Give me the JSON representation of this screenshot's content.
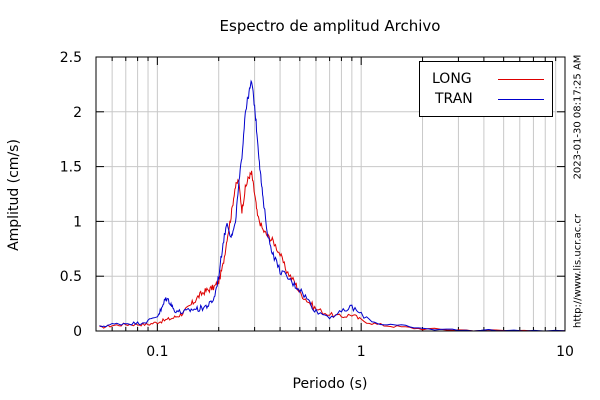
{
  "chart_data": {
    "type": "line",
    "title": "Espectro de amplitud Archivo",
    "xlabel": "Periodo (s)",
    "ylabel": "Amplitud (cm/s)",
    "xscale": "log",
    "xlim": [
      0.05,
      10
    ],
    "ylim": [
      0,
      2.5
    ],
    "x_tick_labels": [
      "0.1",
      "1",
      "10"
    ],
    "y_tick_labels": [
      "0",
      "0.5",
      "1",
      "1.5",
      "2",
      "2.5"
    ],
    "grid": true,
    "legend_position": "top-right",
    "series": [
      {
        "name": "LONG",
        "color": "#dd0000",
        "points": [
          [
            0.052,
            0.03
          ],
          [
            0.06,
            0.05
          ],
          [
            0.07,
            0.06
          ],
          [
            0.08,
            0.06
          ],
          [
            0.09,
            0.06
          ],
          [
            0.1,
            0.08
          ],
          [
            0.11,
            0.1
          ],
          [
            0.12,
            0.12
          ],
          [
            0.13,
            0.15
          ],
          [
            0.14,
            0.2
          ],
          [
            0.15,
            0.26
          ],
          [
            0.16,
            0.32
          ],
          [
            0.17,
            0.36
          ],
          [
            0.18,
            0.38
          ],
          [
            0.19,
            0.4
          ],
          [
            0.2,
            0.45
          ],
          [
            0.21,
            0.6
          ],
          [
            0.22,
            0.85
          ],
          [
            0.23,
            1.05
          ],
          [
            0.24,
            1.3
          ],
          [
            0.25,
            1.38
          ],
          [
            0.26,
            1.1
          ],
          [
            0.27,
            1.3
          ],
          [
            0.28,
            1.4
          ],
          [
            0.29,
            1.44
          ],
          [
            0.3,
            1.25
          ],
          [
            0.31,
            1.05
          ],
          [
            0.33,
            0.92
          ],
          [
            0.35,
            0.86
          ],
          [
            0.37,
            0.82
          ],
          [
            0.4,
            0.7
          ],
          [
            0.43,
            0.55
          ],
          [
            0.47,
            0.45
          ],
          [
            0.5,
            0.35
          ],
          [
            0.55,
            0.27
          ],
          [
            0.6,
            0.2
          ],
          [
            0.7,
            0.15
          ],
          [
            0.8,
            0.13
          ],
          [
            0.9,
            0.15
          ],
          [
            1.0,
            0.1
          ],
          [
            1.2,
            0.06
          ],
          [
            1.5,
            0.04
          ],
          [
            2.0,
            0.02
          ],
          [
            3.0,
            0.01
          ],
          [
            5.0,
            0.005
          ],
          [
            10.0,
            0.002
          ]
        ]
      },
      {
        "name": "TRAN",
        "color": "#0000cc",
        "points": [
          [
            0.052,
            0.04
          ],
          [
            0.06,
            0.06
          ],
          [
            0.07,
            0.07
          ],
          [
            0.08,
            0.07
          ],
          [
            0.09,
            0.09
          ],
          [
            0.1,
            0.14
          ],
          [
            0.105,
            0.2
          ],
          [
            0.11,
            0.3
          ],
          [
            0.115,
            0.27
          ],
          [
            0.12,
            0.2
          ],
          [
            0.13,
            0.17
          ],
          [
            0.14,
            0.18
          ],
          [
            0.15,
            0.2
          ],
          [
            0.16,
            0.2
          ],
          [
            0.17,
            0.22
          ],
          [
            0.18,
            0.24
          ],
          [
            0.19,
            0.3
          ],
          [
            0.2,
            0.5
          ],
          [
            0.21,
            0.8
          ],
          [
            0.22,
            1.0
          ],
          [
            0.23,
            0.85
          ],
          [
            0.24,
            0.95
          ],
          [
            0.25,
            1.3
          ],
          [
            0.26,
            1.6
          ],
          [
            0.27,
            2.0
          ],
          [
            0.28,
            2.15
          ],
          [
            0.29,
            2.28
          ],
          [
            0.3,
            2.05
          ],
          [
            0.31,
            1.75
          ],
          [
            0.32,
            1.45
          ],
          [
            0.33,
            1.2
          ],
          [
            0.35,
            0.85
          ],
          [
            0.37,
            0.7
          ],
          [
            0.4,
            0.55
          ],
          [
            0.43,
            0.5
          ],
          [
            0.47,
            0.42
          ],
          [
            0.5,
            0.38
          ],
          [
            0.55,
            0.28
          ],
          [
            0.6,
            0.18
          ],
          [
            0.7,
            0.13
          ],
          [
            0.8,
            0.17
          ],
          [
            0.9,
            0.22
          ],
          [
            1.0,
            0.15
          ],
          [
            1.2,
            0.07
          ],
          [
            1.5,
            0.05
          ],
          [
            2.0,
            0.02
          ],
          [
            3.0,
            0.01
          ],
          [
            5.0,
            0.005
          ],
          [
            10.0,
            0.002
          ]
        ]
      }
    ]
  },
  "side_text": {
    "url": "http://www.lis.ucr.ac.cr",
    "timestamp": "2023-01-30 08:17:25 AM"
  }
}
